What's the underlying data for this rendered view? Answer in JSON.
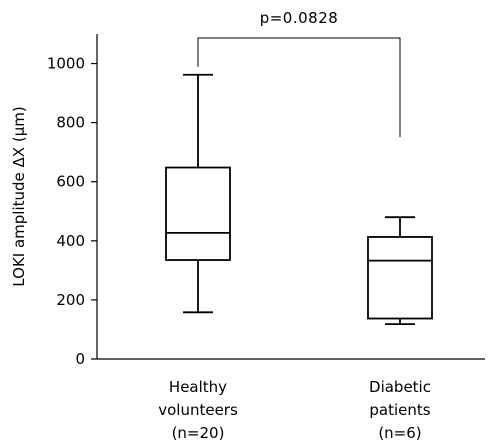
{
  "chart_data": {
    "type": "box",
    "ylabel": "LOKI amplitude ΔX (μm)",
    "ylim": [
      0,
      1100
    ],
    "yticks": [
      0,
      200,
      400,
      600,
      800,
      1000
    ],
    "grid": false,
    "categories": [
      {
        "lines": [
          "Healthy",
          "volunteers",
          "(n=20)"
        ]
      },
      {
        "lines": [
          "Diabetic",
          "patients",
          "(n=6)"
        ]
      }
    ],
    "boxes": [
      {
        "min": 158,
        "q1": 335,
        "median": 427,
        "q3": 648,
        "max": 962
      },
      {
        "min": 118,
        "q1": 137,
        "median": 333,
        "q3": 413,
        "max": 480
      }
    ],
    "annotation": {
      "text": "p=0.0828",
      "between": [
        0,
        1
      ]
    }
  }
}
